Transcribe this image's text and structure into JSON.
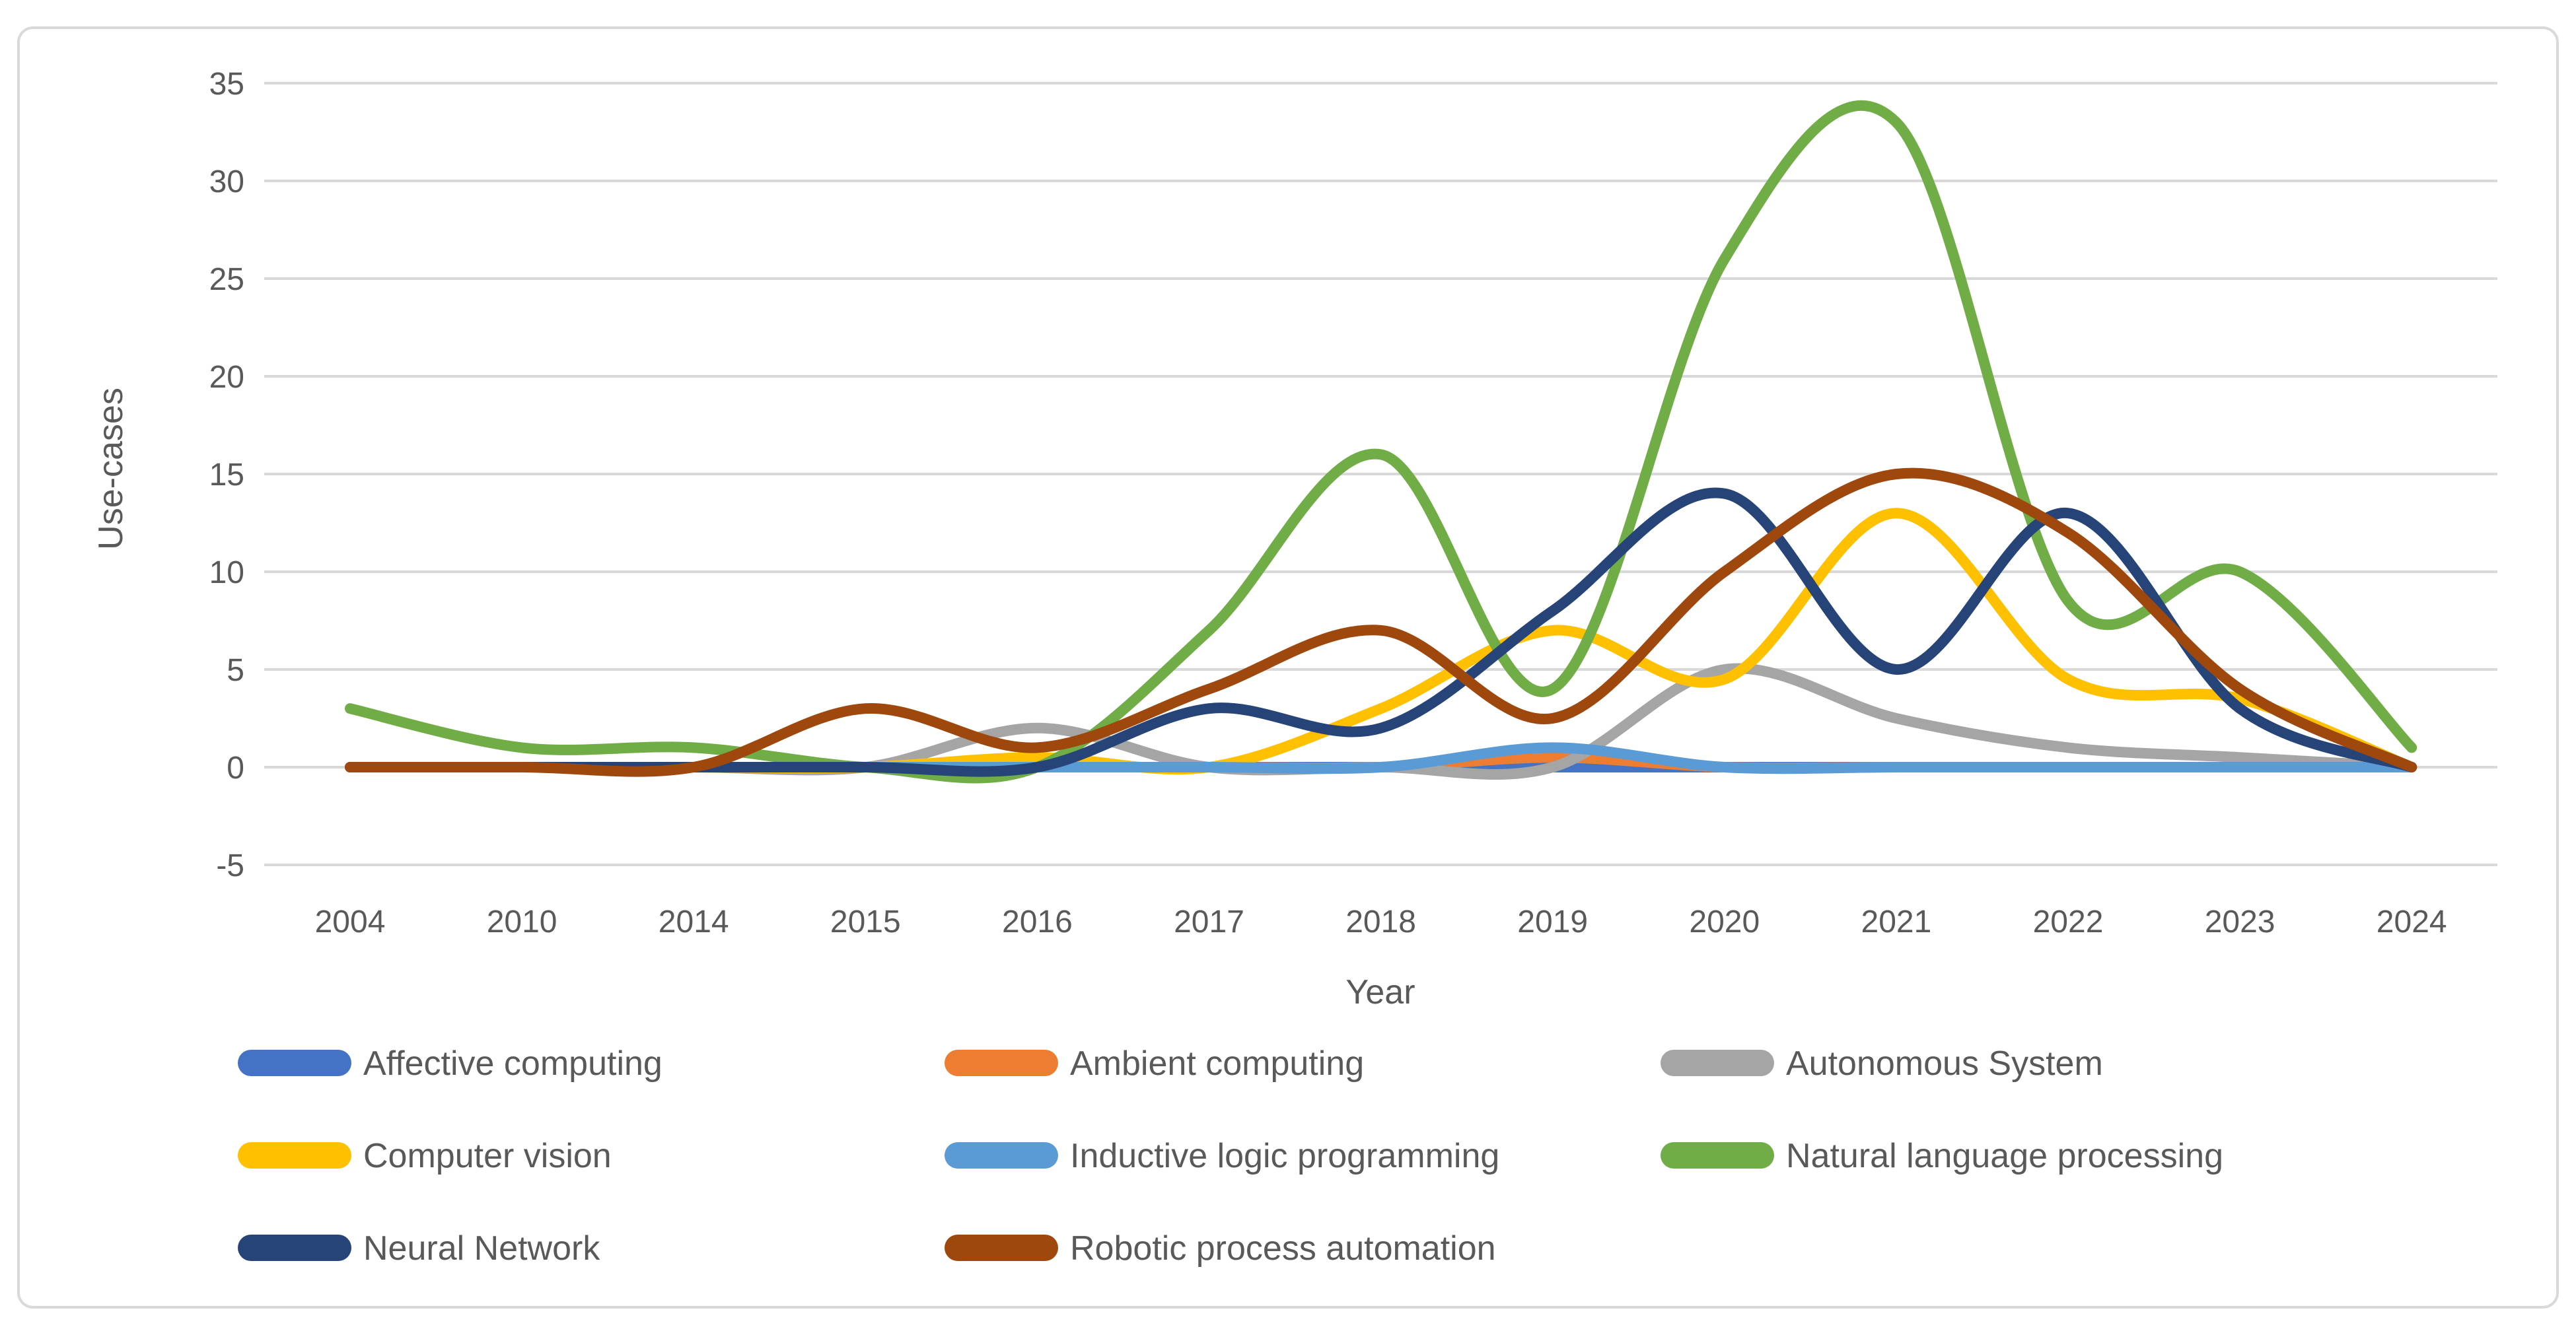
{
  "chart_data": {
    "type": "line",
    "title": "",
    "xlabel": "Year",
    "ylabel": "Use-cases",
    "categories": [
      "2004",
      "2010",
      "2014",
      "2015",
      "2016",
      "2017",
      "2018",
      "2019",
      "2020",
      "2021",
      "2022",
      "2023",
      "2024"
    ],
    "ylim": [
      -5,
      35
    ],
    "ytick_step": 5,
    "grid": true,
    "grid_color": "#D9D9D9",
    "axis_text_color": "#595959",
    "legend_position": "bottom",
    "line_smooth": true,
    "series": [
      {
        "name": "Affective computing",
        "color": "#4472C4",
        "values": [
          0,
          0,
          0,
          0,
          0,
          0,
          0,
          0,
          0,
          0,
          0,
          0,
          0
        ]
      },
      {
        "name": "Ambient computing",
        "color": "#ED7D31",
        "values": [
          0,
          0,
          0,
          0,
          0,
          0,
          0,
          0.5,
          0,
          0,
          0,
          0,
          0
        ]
      },
      {
        "name": "Autonomous System",
        "color": "#A5A5A5",
        "values": [
          0,
          0,
          0,
          0,
          2,
          0,
          0,
          0,
          5,
          2.5,
          1,
          0.5,
          0
        ]
      },
      {
        "name": "Computer vision",
        "color": "#FFC000",
        "values": [
          0,
          0,
          0,
          0,
          0.5,
          0,
          3,
          7,
          4.5,
          13,
          4.5,
          3.5,
          0
        ]
      },
      {
        "name": "Inductive logic programming",
        "color": "#5B9BD5",
        "values": [
          0,
          0,
          0,
          0,
          0,
          0,
          0,
          1,
          0,
          0,
          0,
          0,
          0
        ]
      },
      {
        "name": "Natural language processing",
        "color": "#70AD47",
        "values": [
          3,
          1,
          1,
          0,
          0,
          7,
          16,
          4,
          26,
          33,
          8.5,
          10,
          1
        ]
      },
      {
        "name": "Neural Network",
        "color": "#264478",
        "values": [
          0,
          0,
          0,
          0,
          0,
          3,
          2,
          8,
          14,
          5,
          13,
          3,
          0
        ]
      },
      {
        "name": "Robotic process automation",
        "color": "#9E480E",
        "values": [
          0,
          0,
          0,
          3,
          1,
          4,
          7,
          2.5,
          10,
          15,
          12,
          4,
          0
        ]
      }
    ]
  }
}
